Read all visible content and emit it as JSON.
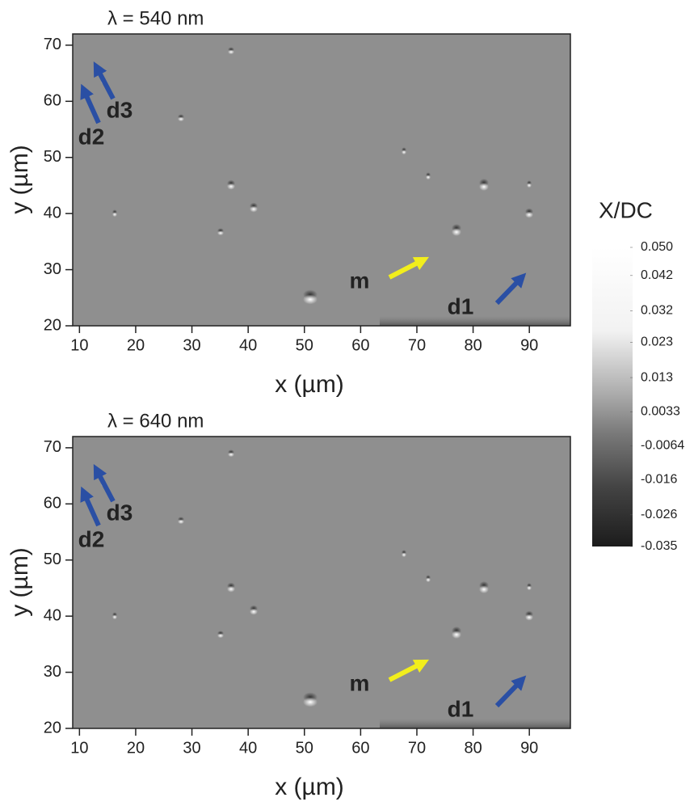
{
  "chart_data": [
    {
      "type": "heatmap",
      "title": "λ = 540 nm",
      "xlabel": "x (µm)",
      "ylabel": "y (µm)",
      "xlim": [
        8.8,
        97.3
      ],
      "ylim": [
        20,
        72
      ],
      "xticks": [
        10,
        20,
        30,
        40,
        50,
        60,
        70,
        80,
        90
      ],
      "yticks": [
        20,
        30,
        40,
        50,
        60,
        70
      ],
      "annotations": [
        {
          "text": "d3",
          "color": "#2a4fa4"
        },
        {
          "text": "d2",
          "color": "#2a4fa4"
        },
        {
          "text": "m",
          "color": "#f2ee1c"
        },
        {
          "text": "d1",
          "color": "#2a4fa4"
        }
      ]
    },
    {
      "type": "heatmap",
      "title": "λ = 640 nm",
      "xlabel": "x (µm)",
      "ylabel": "y (µm)",
      "xlim": [
        8.8,
        97.3
      ],
      "ylim": [
        20,
        72
      ],
      "xticks": [
        10,
        20,
        30,
        40,
        50,
        60,
        70,
        80,
        90
      ],
      "yticks": [
        20,
        30,
        40,
        50,
        60,
        70
      ],
      "annotations": [
        {
          "text": "d3",
          "color": "#2a4fa4"
        },
        {
          "text": "d2",
          "color": "#2a4fa4"
        },
        {
          "text": "m",
          "color": "#f2ee1c"
        },
        {
          "text": "d1",
          "color": "#2a4fa4"
        }
      ]
    }
  ],
  "colorbar": {
    "label": "X/DC",
    "zlim": [
      -0.035,
      0.05
    ],
    "zticks": [
      {
        "value": 0.05,
        "label": "0.050"
      },
      0.042,
      0.032,
      0.023,
      0.013,
      0.0033,
      -0.0064,
      -0.016,
      -0.026,
      -0.035
    ]
  }
}
